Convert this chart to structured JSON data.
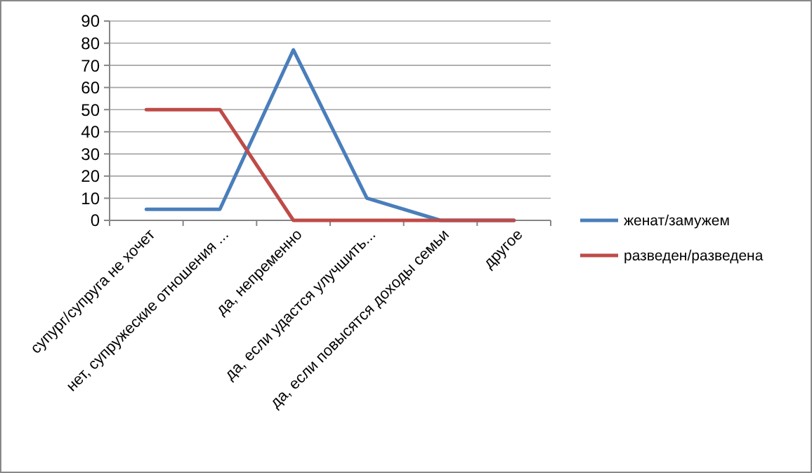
{
  "chart_data": {
    "type": "line",
    "categories": [
      "супург/супруга не хочет",
      "нет, супружеские отношения ...",
      "да, непременно",
      "да, если  удастся  улучшить...",
      "да, если повысятся  доходы  семьи",
      "другое"
    ],
    "series": [
      {
        "name": "женат/замужем",
        "color": "#4a7ebb",
        "values": [
          5,
          5,
          77,
          10,
          0,
          0
        ]
      },
      {
        "name": "разведен/разведена",
        "color": "#be4b48",
        "values": [
          50,
          50,
          0,
          0,
          0,
          0
        ]
      }
    ],
    "ylim": [
      0,
      90
    ],
    "yticks": [
      0,
      10,
      20,
      30,
      40,
      50,
      60,
      70,
      80,
      90
    ],
    "grid": "y",
    "legend": "right",
    "marker": "none",
    "line_style": "solid"
  }
}
